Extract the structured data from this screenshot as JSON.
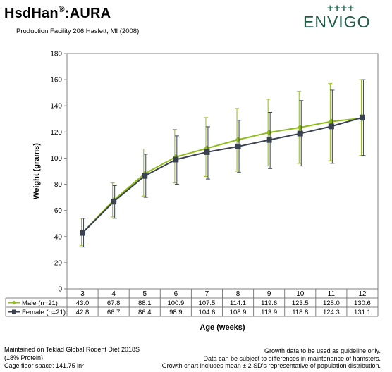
{
  "header": {
    "title_main": "HsdHan",
    "title_reg": "®",
    "title_suffix": ":AURA",
    "subtitle": "Production Facility 206 Haslett, MI (2008)"
  },
  "logo": {
    "plus": "++++",
    "word": "ENVIGO"
  },
  "chart_data": {
    "type": "line",
    "xlabel": "Age (weeks)",
    "ylabel": "Weight (grams)",
    "categories": [
      "3",
      "4",
      "5",
      "6",
      "7",
      "8",
      "9",
      "10",
      "11",
      "12"
    ],
    "ylim": [
      0,
      180
    ],
    "yticks": [
      0,
      20,
      40,
      60,
      80,
      100,
      120,
      140,
      160,
      180
    ],
    "grid": false,
    "series": [
      {
        "name": "Male (n=21)",
        "color": "#8fbd1a",
        "marker": "diamond",
        "values": [
          43.0,
          67.8,
          88.1,
          100.9,
          107.5,
          114.1,
          119.6,
          123.5,
          128.0,
          130.6
        ],
        "labels": [
          "43.0",
          "67.8",
          "88.1",
          "100.9",
          "107.5",
          "114.1",
          "119.6",
          "123.5",
          "128.0",
          "130.6"
        ],
        "err_low": [
          33,
          55,
          71,
          81,
          86,
          90,
          94,
          96,
          98,
          102
        ],
        "err_high": [
          54,
          81,
          107,
          122,
          131,
          138,
          145,
          151,
          157,
          160
        ]
      },
      {
        "name": "Female (n=21)",
        "color": "#3a4250",
        "marker": "square",
        "values": [
          42.8,
          66.7,
          86.4,
          98.9,
          104.6,
          108.9,
          113.9,
          118.8,
          124.3,
          131.1
        ],
        "labels": [
          "42.8",
          "66.7",
          "86.4",
          "98.9",
          "104.6",
          "108.9",
          "113.9",
          "118.8",
          "124.3",
          "131.1"
        ],
        "err_low": [
          32,
          54,
          70,
          80,
          84,
          89,
          92,
          94,
          96,
          102
        ],
        "err_high": [
          54,
          79,
          103,
          117,
          124,
          129,
          135,
          144,
          152,
          160
        ]
      }
    ]
  },
  "footer": {
    "left": [
      "Maintained on Teklad Global Rodent Diet 2018S",
      "(18% Protein)",
      "Cage floor space: 141.75 in²"
    ],
    "right": [
      "Growth data to be used as guideline only.",
      "Data can be subject to differences in maintenance of hamsters.",
      "Growth chart includes mean ± 2 SD's representative of population distribution."
    ]
  }
}
